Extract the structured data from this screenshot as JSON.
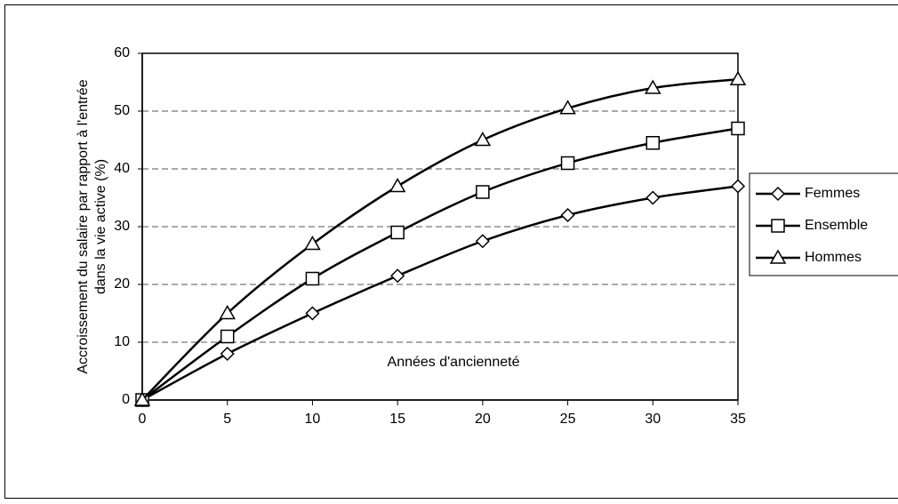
{
  "chart_data": {
    "type": "line",
    "x_label": "Années d'ancienneté",
    "y_label": [
      "Accroissement du salaire par rapport à l'entrée",
      "dans la vie active (%)"
    ],
    "x": [
      0,
      5,
      10,
      15,
      20,
      25,
      30,
      35
    ],
    "series": [
      {
        "name": "Femmes",
        "color": "#000000",
        "marker": "diamond",
        "values": [
          0,
          8,
          15,
          21.5,
          27.5,
          32,
          35,
          37
        ]
      },
      {
        "name": "Ensemble",
        "color": "#000000",
        "marker": "square",
        "values": [
          0,
          11,
          21,
          29,
          36,
          41,
          44.5,
          47
        ]
      },
      {
        "name": "Hommes",
        "color": "#000000",
        "marker": "triangle",
        "values": [
          0,
          15,
          27,
          37,
          45,
          50.5,
          54,
          55.5
        ]
      }
    ],
    "xlim": [
      0,
      35
    ],
    "xticks": [
      0,
      5,
      10,
      15,
      20,
      25,
      30,
      35
    ],
    "ylim": [
      0,
      60
    ],
    "yticks": [
      0,
      10,
      20,
      30,
      40,
      50,
      60
    ],
    "grid": true,
    "legend": "right"
  }
}
